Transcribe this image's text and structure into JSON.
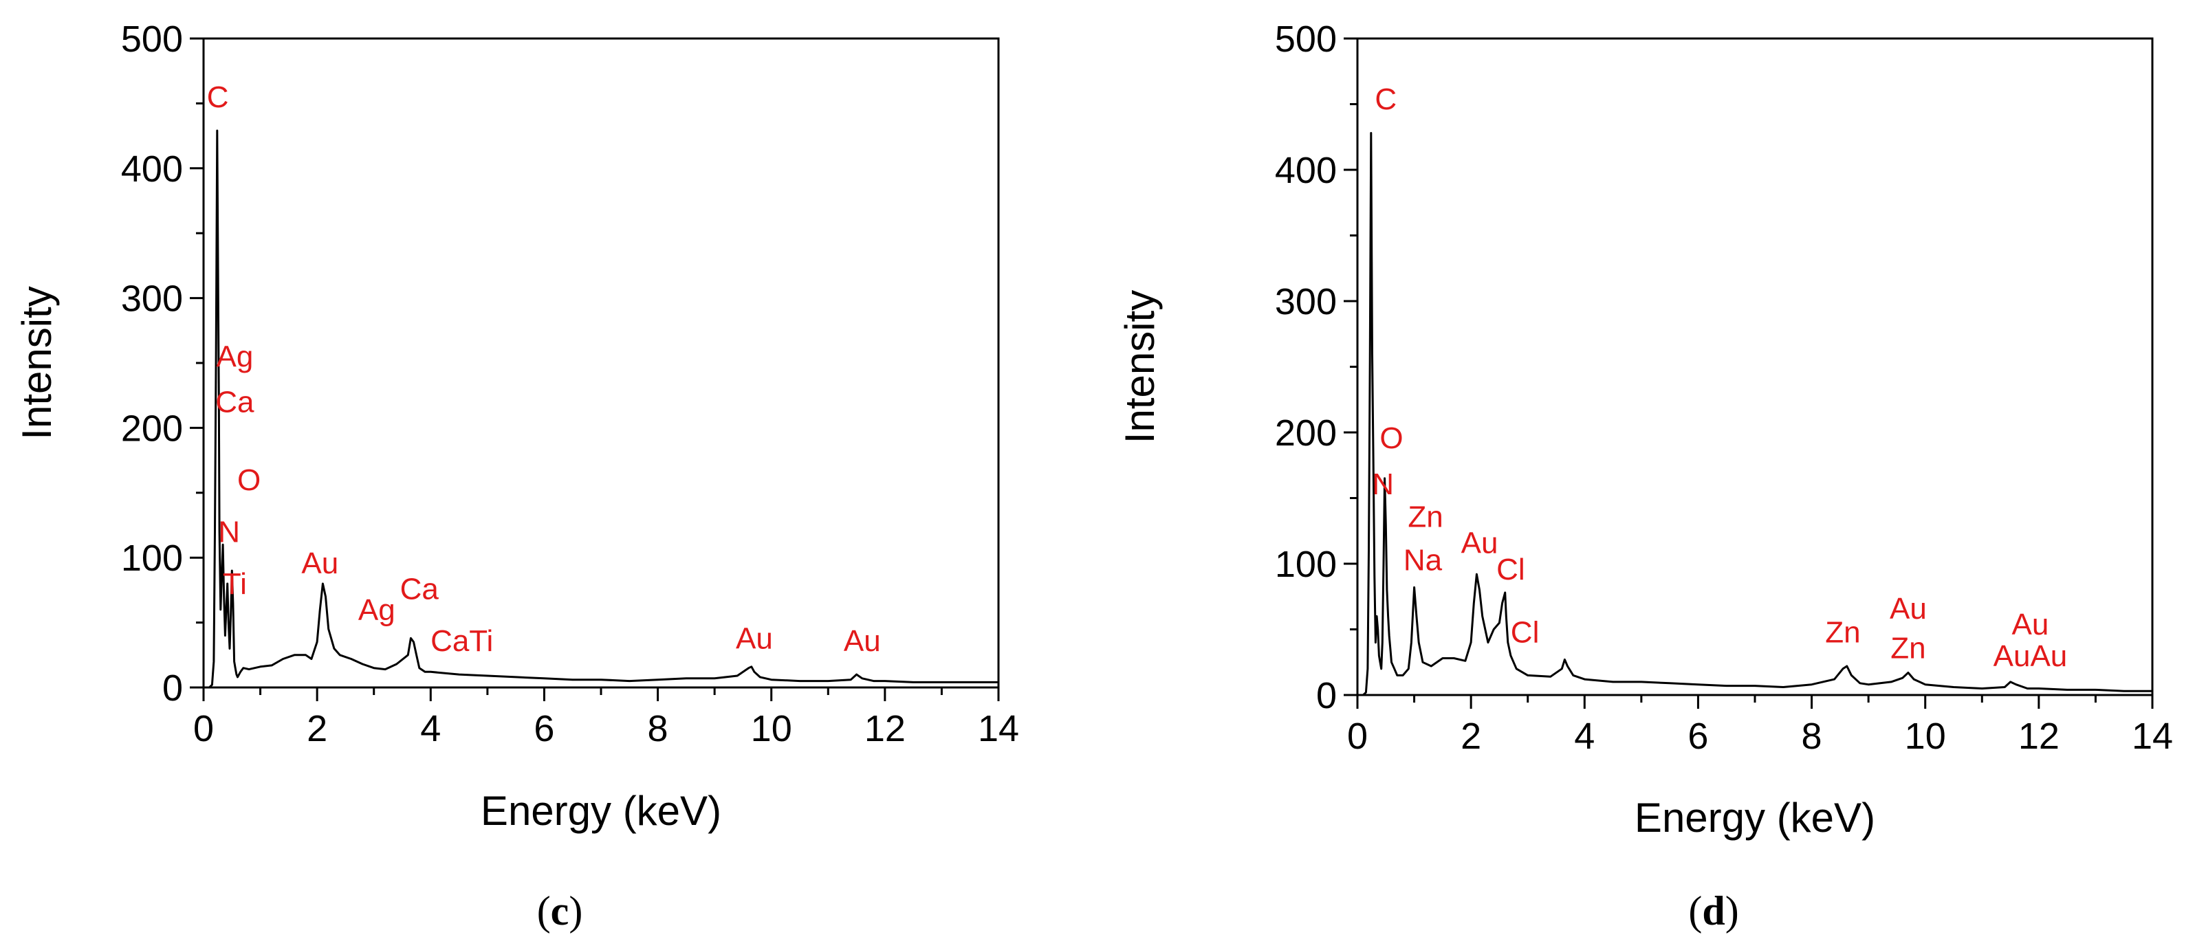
{
  "chart_data": [
    {
      "id": "c",
      "type": "line",
      "panel_label": "c",
      "xlabel": "Energy (keV)",
      "ylabel": "Intensity",
      "xlim": [
        0,
        14
      ],
      "ylim": [
        0,
        500
      ],
      "xticks": [
        0,
        2,
        4,
        6,
        8,
        10,
        12,
        14
      ],
      "yticks": [
        0,
        100,
        200,
        300,
        400,
        500
      ],
      "grid": false,
      "series": [
        {
          "color": "#000000",
          "x": [
            0.1,
            0.15,
            0.18,
            0.2,
            0.22,
            0.24,
            0.26,
            0.27,
            0.28,
            0.3,
            0.32,
            0.34,
            0.36,
            0.38,
            0.4,
            0.42,
            0.44,
            0.46,
            0.48,
            0.5,
            0.52,
            0.54,
            0.56,
            0.58,
            0.6,
            0.65,
            0.7,
            0.8,
            1.0,
            1.2,
            1.4,
            1.6,
            1.8,
            1.9,
            2.0,
            2.05,
            2.1,
            2.15,
            2.2,
            2.3,
            2.4,
            2.6,
            2.8,
            3.0,
            3.2,
            3.4,
            3.6,
            3.65,
            3.7,
            3.75,
            3.8,
            3.9,
            4.0,
            4.5,
            5.0,
            5.5,
            6.0,
            6.5,
            7.0,
            7.5,
            8.0,
            8.5,
            9.0,
            9.4,
            9.6,
            9.65,
            9.7,
            9.8,
            10.0,
            10.5,
            11.0,
            11.4,
            11.5,
            11.6,
            11.8,
            12.0,
            12.5,
            13.0,
            13.5,
            14.0
          ],
          "y": [
            0,
            2,
            20,
            120,
            260,
            429,
            285,
            220,
            120,
            60,
            85,
            110,
            70,
            40,
            60,
            80,
            50,
            30,
            55,
            90,
            65,
            20,
            15,
            10,
            8,
            12,
            15,
            14,
            16,
            17,
            22,
            25,
            25,
            22,
            35,
            60,
            80,
            70,
            45,
            30,
            25,
            22,
            18,
            15,
            14,
            18,
            25,
            38,
            35,
            25,
            15,
            12,
            12,
            10,
            9,
            8,
            7,
            6,
            6,
            5,
            6,
            7,
            7,
            9,
            15,
            16,
            12,
            8,
            6,
            5,
            5,
            6,
            10,
            7,
            5,
            5,
            4,
            4,
            4,
            4
          ]
        }
      ],
      "annotations": [
        {
          "text": "C",
          "x": 0.25,
          "y": 447
        },
        {
          "text": "Ag",
          "x": 0.55,
          "y": 247
        },
        {
          "text": "Ca",
          "x": 0.55,
          "y": 212
        },
        {
          "text": "O",
          "x": 0.8,
          "y": 152
        },
        {
          "text": "N",
          "x": 0.45,
          "y": 112
        },
        {
          "text": "Ti",
          "x": 0.55,
          "y": 72
        },
        {
          "text": "Au",
          "x": 2.05,
          "y": 88
        },
        {
          "text": "Ag",
          "x": 3.05,
          "y": 52
        },
        {
          "text": "Ca",
          "x": 3.8,
          "y": 68
        },
        {
          "text": "CaTi",
          "x": 4.55,
          "y": 28
        },
        {
          "text": "Au",
          "x": 9.7,
          "y": 30
        },
        {
          "text": "Au",
          "x": 11.6,
          "y": 28
        }
      ]
    },
    {
      "id": "d",
      "type": "line",
      "panel_label": "d",
      "xlabel": "Energy (keV)",
      "ylabel": "Intensity",
      "xlim": [
        0,
        14
      ],
      "ylim": [
        0,
        500
      ],
      "xticks": [
        0,
        2,
        4,
        6,
        8,
        10,
        12,
        14
      ],
      "yticks": [
        0,
        100,
        200,
        300,
        400,
        500
      ],
      "grid": false,
      "series": [
        {
          "color": "#000000",
          "x": [
            0.1,
            0.15,
            0.18,
            0.2,
            0.22,
            0.24,
            0.26,
            0.28,
            0.3,
            0.32,
            0.34,
            0.36,
            0.38,
            0.4,
            0.42,
            0.44,
            0.46,
            0.48,
            0.5,
            0.52,
            0.54,
            0.56,
            0.58,
            0.6,
            0.65,
            0.7,
            0.8,
            0.9,
            0.95,
            1.0,
            1.04,
            1.08,
            1.15,
            1.3,
            1.5,
            1.7,
            1.9,
            2.0,
            2.05,
            2.1,
            2.15,
            2.2,
            2.3,
            2.4,
            2.5,
            2.55,
            2.6,
            2.62,
            2.65,
            2.7,
            2.8,
            3.0,
            3.4,
            3.6,
            3.65,
            3.7,
            3.8,
            4.0,
            4.5,
            5.0,
            5.5,
            6.0,
            6.5,
            7.0,
            7.5,
            8.0,
            8.4,
            8.55,
            8.62,
            8.7,
            8.85,
            9.0,
            9.4,
            9.6,
            9.7,
            9.8,
            10.0,
            10.5,
            11.0,
            11.4,
            11.5,
            11.6,
            11.8,
            12.0,
            12.5,
            13.0,
            13.5,
            14.0
          ],
          "y": [
            0,
            2,
            20,
            110,
            255,
            428,
            260,
            180,
            90,
            40,
            60,
            50,
            30,
            25,
            20,
            40,
            100,
            165,
            130,
            80,
            60,
            45,
            35,
            25,
            20,
            15,
            15,
            20,
            40,
            82,
            60,
            40,
            25,
            22,
            28,
            28,
            26,
            40,
            70,
            92,
            80,
            60,
            40,
            50,
            55,
            70,
            78,
            60,
            40,
            30,
            20,
            15,
            14,
            20,
            27,
            22,
            15,
            12,
            10,
            10,
            9,
            8,
            7,
            7,
            6,
            8,
            12,
            20,
            22,
            15,
            9,
            8,
            10,
            13,
            17,
            12,
            8,
            6,
            5,
            6,
            10,
            8,
            5,
            5,
            4,
            4,
            3,
            3
          ]
        }
      ],
      "annotations": [
        {
          "text": "C",
          "x": 0.5,
          "y": 446
        },
        {
          "text": "O",
          "x": 0.6,
          "y": 188
        },
        {
          "text": "N",
          "x": 0.45,
          "y": 153
        },
        {
          "text": "Zn",
          "x": 1.2,
          "y": 128
        },
        {
          "text": "Na",
          "x": 1.15,
          "y": 95
        },
        {
          "text": "Au",
          "x": 2.15,
          "y": 108
        },
        {
          "text": "Cl",
          "x": 2.7,
          "y": 88
        },
        {
          "text": "Cl",
          "x": 2.95,
          "y": 40
        },
        {
          "text": "Zn",
          "x": 8.55,
          "y": 40
        },
        {
          "text": "Au",
          "x": 9.7,
          "y": 58
        },
        {
          "text": "Zn",
          "x": 9.7,
          "y": 28
        },
        {
          "text": "Au",
          "x": 11.85,
          "y": 46
        },
        {
          "text": "AuAu",
          "x": 11.85,
          "y": 22
        }
      ]
    }
  ]
}
